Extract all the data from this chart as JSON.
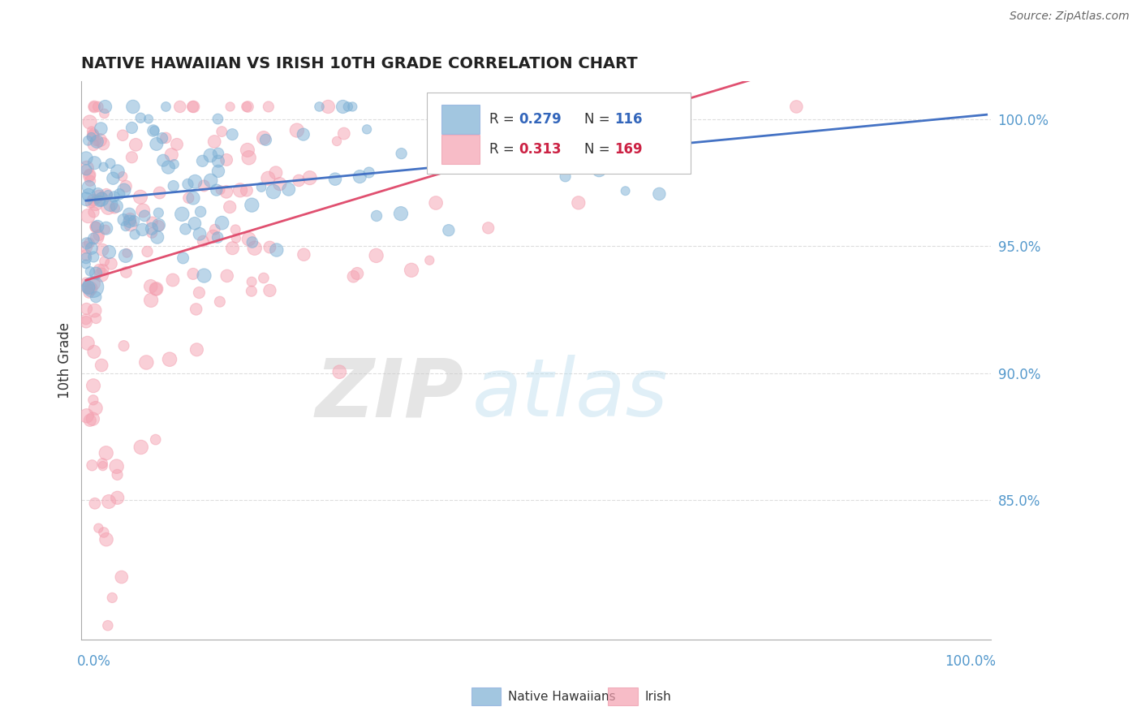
{
  "title": "NATIVE HAWAIIAN VS IRISH 10TH GRADE CORRELATION CHART",
  "source": "Source: ZipAtlas.com",
  "ylabel": "10th Grade",
  "blue_R": 0.279,
  "blue_N": 116,
  "pink_R": 0.313,
  "pink_N": 169,
  "blue_color": "#7BAFD4",
  "pink_color": "#F4A0B0",
  "blue_label": "Native Hawaiians",
  "pink_label": "Irish",
  "background_color": "#ffffff",
  "blue_line_color": "#4472C4",
  "pink_line_color": "#E05070",
  "legend_R_color_blue": "#3366BB",
  "legend_R_color_pink": "#CC2244",
  "legend_N_color_blue": "#3366BB",
  "legend_N_color_pink": "#CC2244",
  "ytick_color": "#5599CC",
  "xtick_color": "#5599CC",
  "watermark_zip_color": "#CCCCCC",
  "watermark_atlas_color": "#AACCEE",
  "grid_color": "#DDDDDD",
  "spine_color": "#AAAAAA",
  "title_color": "#222222",
  "source_color": "#666666"
}
